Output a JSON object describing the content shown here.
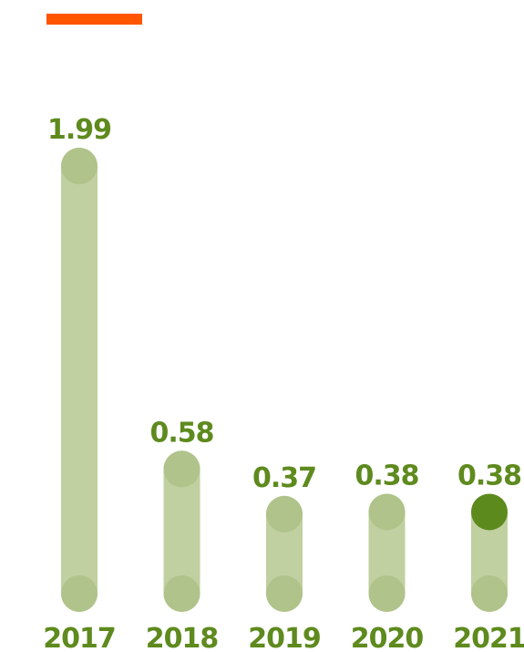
{
  "colors": {
    "accent": "#ff5500",
    "bar": "#c0d0a0",
    "cap": "#afc38a",
    "highlight": "#5c8a1c",
    "label": "#5e8a1e"
  },
  "chart_data": {
    "type": "bar",
    "categories": [
      "2017",
      "2018",
      "2019",
      "2020",
      "2021"
    ],
    "values": [
      1.99,
      0.58,
      0.37,
      0.38,
      0.38
    ],
    "value_labels": [
      "1.99",
      "0.58",
      "0.37",
      "0.38",
      "0.38"
    ],
    "highlight_index": 4,
    "title": "",
    "xlabel": "",
    "ylabel": "",
    "ylim": [
      0,
      1.99
    ],
    "grid": false,
    "legend": "none"
  }
}
